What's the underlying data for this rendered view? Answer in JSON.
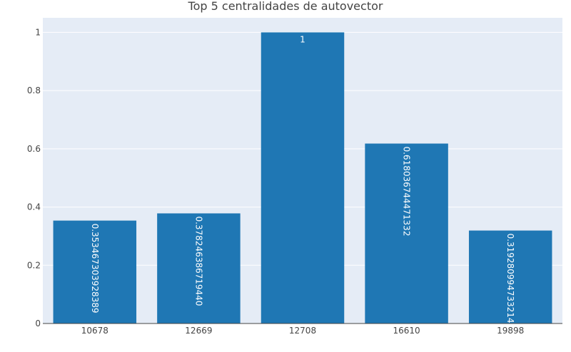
{
  "chart_data": {
    "type": "bar",
    "title": "Top 5 centralidades de autovector",
    "categories": [
      "10678",
      "12669",
      "12708",
      "16610",
      "19898"
    ],
    "values": [
      0.353467303928389,
      0.37824638671944,
      1,
      0.618036744471332,
      0.319280994733214
    ],
    "data_labels": [
      "0.353467303928389",
      "0.378246386719440",
      "1",
      "0.618036744471332",
      "0.319280994733214"
    ],
    "ylim": [
      0,
      1.05
    ],
    "yticks": [
      0,
      0.2,
      0.4,
      0.6,
      0.8,
      1
    ],
    "ytick_labels": [
      "0",
      "0.2",
      "0.4",
      "0.6",
      "0.8",
      "1"
    ],
    "grid": true,
    "colors": {
      "bar": "#1f77b4",
      "plot_bg": "#e5ecf6",
      "grid": "#ffffff",
      "text": "#444444",
      "label": "#ffffff"
    }
  }
}
